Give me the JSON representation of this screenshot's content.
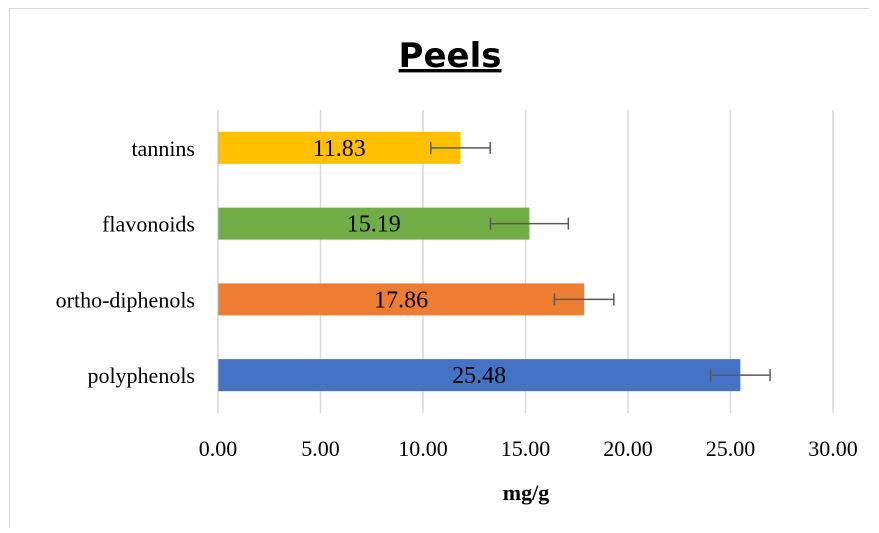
{
  "chart_data": {
    "type": "bar",
    "orientation": "horizontal",
    "title": "Peels",
    "xlabel": "mg/g",
    "ylabel": "",
    "categories": [
      "tannins",
      "flavonoids",
      "ortho-diphenols",
      "polyphenols"
    ],
    "values": [
      11.83,
      15.19,
      17.86,
      25.48
    ],
    "error_values": [
      1.45,
      1.9,
      1.45,
      1.45
    ],
    "bar_colors": [
      "#FFC000",
      "#70AD47",
      "#ED7D31",
      "#4472C4"
    ],
    "xlim": [
      0,
      30
    ],
    "xticks": [
      0,
      5,
      10,
      15,
      20,
      25,
      30
    ],
    "xtick_labels": [
      "0.00",
      "5.00",
      "10.00",
      "15.00",
      "20.00",
      "25.00",
      "30.00"
    ],
    "data_labels": [
      "11.83",
      "15.19",
      "17.86",
      "25.48"
    ],
    "grid": "vertical major gridlines",
    "legend": "none"
  }
}
